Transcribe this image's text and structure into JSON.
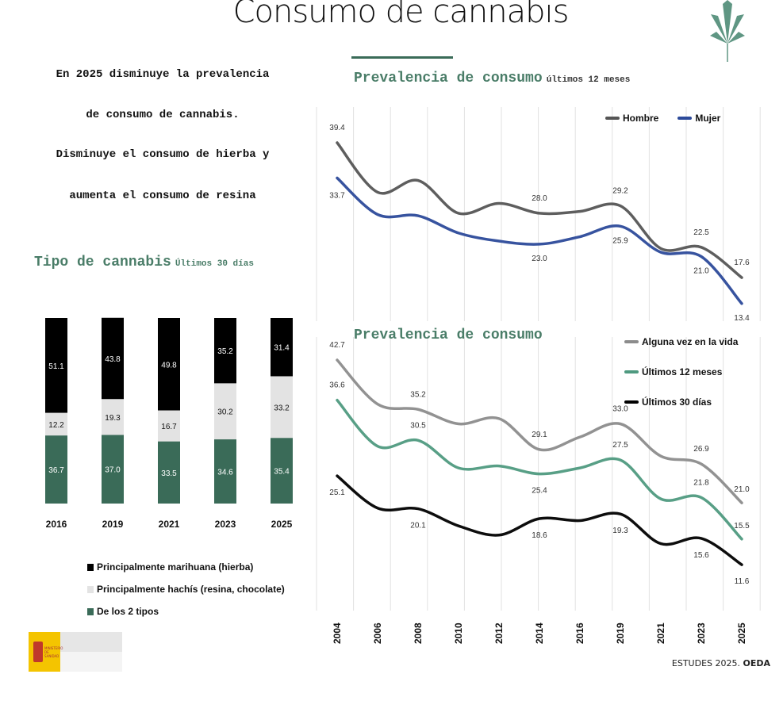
{
  "header": {
    "title": "Consumo de cannabis"
  },
  "intro": {
    "lines": [
      "En 2025 disminuye la prevalencia",
      "de consumo de cannabis.",
      "Disminuye el consumo de hierba y",
      "aumenta el consumo de resina"
    ]
  },
  "colors": {
    "accent": "#4a7d68",
    "hombre": "#555555",
    "mujer": "#2c4a9a",
    "vida": "#8c8c8c",
    "doce": "#4f9a80",
    "treinta": "#000000",
    "hierba": "#000000",
    "hachis": "#e3e3e3",
    "ambos": "#3a6b58"
  },
  "chart_data": [
    {
      "type": "bar",
      "stacked": true,
      "title": "Tipo de cannabis",
      "subtitle": "Últimos 30 días",
      "categories": [
        "2016",
        "2019",
        "2021",
        "2023",
        "2025"
      ],
      "series": [
        {
          "name": "Principalmente marihuana (hierba)",
          "values": [
            51.1,
            43.8,
            49.8,
            35.2,
            31.4
          ]
        },
        {
          "name": "Principalmente hachís (resina, chocolate)",
          "values": [
            12.2,
            19.3,
            16.7,
            30.2,
            33.2
          ]
        },
        {
          "name": "De los 2 tipos",
          "values": [
            36.7,
            37.0,
            33.5,
            34.6,
            35.4
          ]
        }
      ],
      "ylim": [
        0,
        100
      ],
      "legend": "bottom"
    },
    {
      "type": "line",
      "title": "Prevalencia de consumo",
      "subtitle": "últimos 12 meses",
      "x": [
        "2004",
        "2006",
        "2008",
        "2010",
        "2012",
        "2014",
        "2016",
        "2019",
        "2021",
        "2023",
        "2025"
      ],
      "series": [
        {
          "name": "Hombre",
          "values": [
            39.4,
            31.4,
            33.3,
            28.0,
            29.6,
            28.0,
            28.3,
            29.2,
            22.3,
            22.5,
            17.6
          ],
          "labels": [
            "39.4",
            "",
            "",
            "",
            "",
            "28.0",
            "",
            "29.2",
            "",
            "22.5",
            "17.6"
          ]
        },
        {
          "name": "Mujer",
          "values": [
            33.7,
            27.8,
            27.6,
            24.8,
            23.5,
            23.0,
            24.2,
            25.9,
            21.7,
            21.0,
            13.4
          ],
          "labels": [
            "33.7",
            "",
            "",
            "",
            "",
            "23.0",
            "",
            "25.9",
            "",
            "21.0",
            "13.4"
          ]
        }
      ],
      "legend": "top-right",
      "grid": "vertical"
    },
    {
      "type": "line",
      "title": "Prevalencia de consumo",
      "x": [
        "2004",
        "2006",
        "2008",
        "2010",
        "2012",
        "2014",
        "2016",
        "2019",
        "2021",
        "2023",
        "2025"
      ],
      "series": [
        {
          "name": "Alguna vez en la vida",
          "values": [
            42.7,
            36.0,
            35.2,
            33.0,
            33.8,
            29.1,
            31.0,
            33.0,
            28.1,
            26.9,
            21.0
          ],
          "labels": [
            "42.7",
            "",
            "35.2",
            "",
            "",
            "29.1",
            "",
            "33.0",
            "",
            "26.9",
            "21.0"
          ]
        },
        {
          "name": "Últimos 12 meses",
          "values": [
            36.6,
            29.6,
            30.5,
            26.3,
            26.6,
            25.4,
            26.3,
            27.5,
            21.6,
            21.8,
            15.5
          ],
          "labels": [
            "36.6",
            "",
            "30.5",
            "",
            "",
            "25.4",
            "",
            "27.5",
            "",
            "21.8",
            "15.5"
          ]
        },
        {
          "name": "Últimos 30 días",
          "values": [
            25.1,
            20.2,
            20.1,
            17.5,
            16.1,
            18.6,
            18.3,
            19.3,
            14.8,
            15.6,
            11.6
          ],
          "labels": [
            "25.1",
            "",
            "20.1",
            "",
            "",
            "18.6",
            "",
            "19.3",
            "",
            "15.6",
            "11.6"
          ]
        }
      ],
      "legend": "top-right",
      "grid": "vertical"
    }
  ],
  "footer": {
    "source_prefix": "ESTUDES 2025.",
    "source_brand": "OEDA",
    "logo_text": "MINISTERIO DE SANIDAD"
  }
}
